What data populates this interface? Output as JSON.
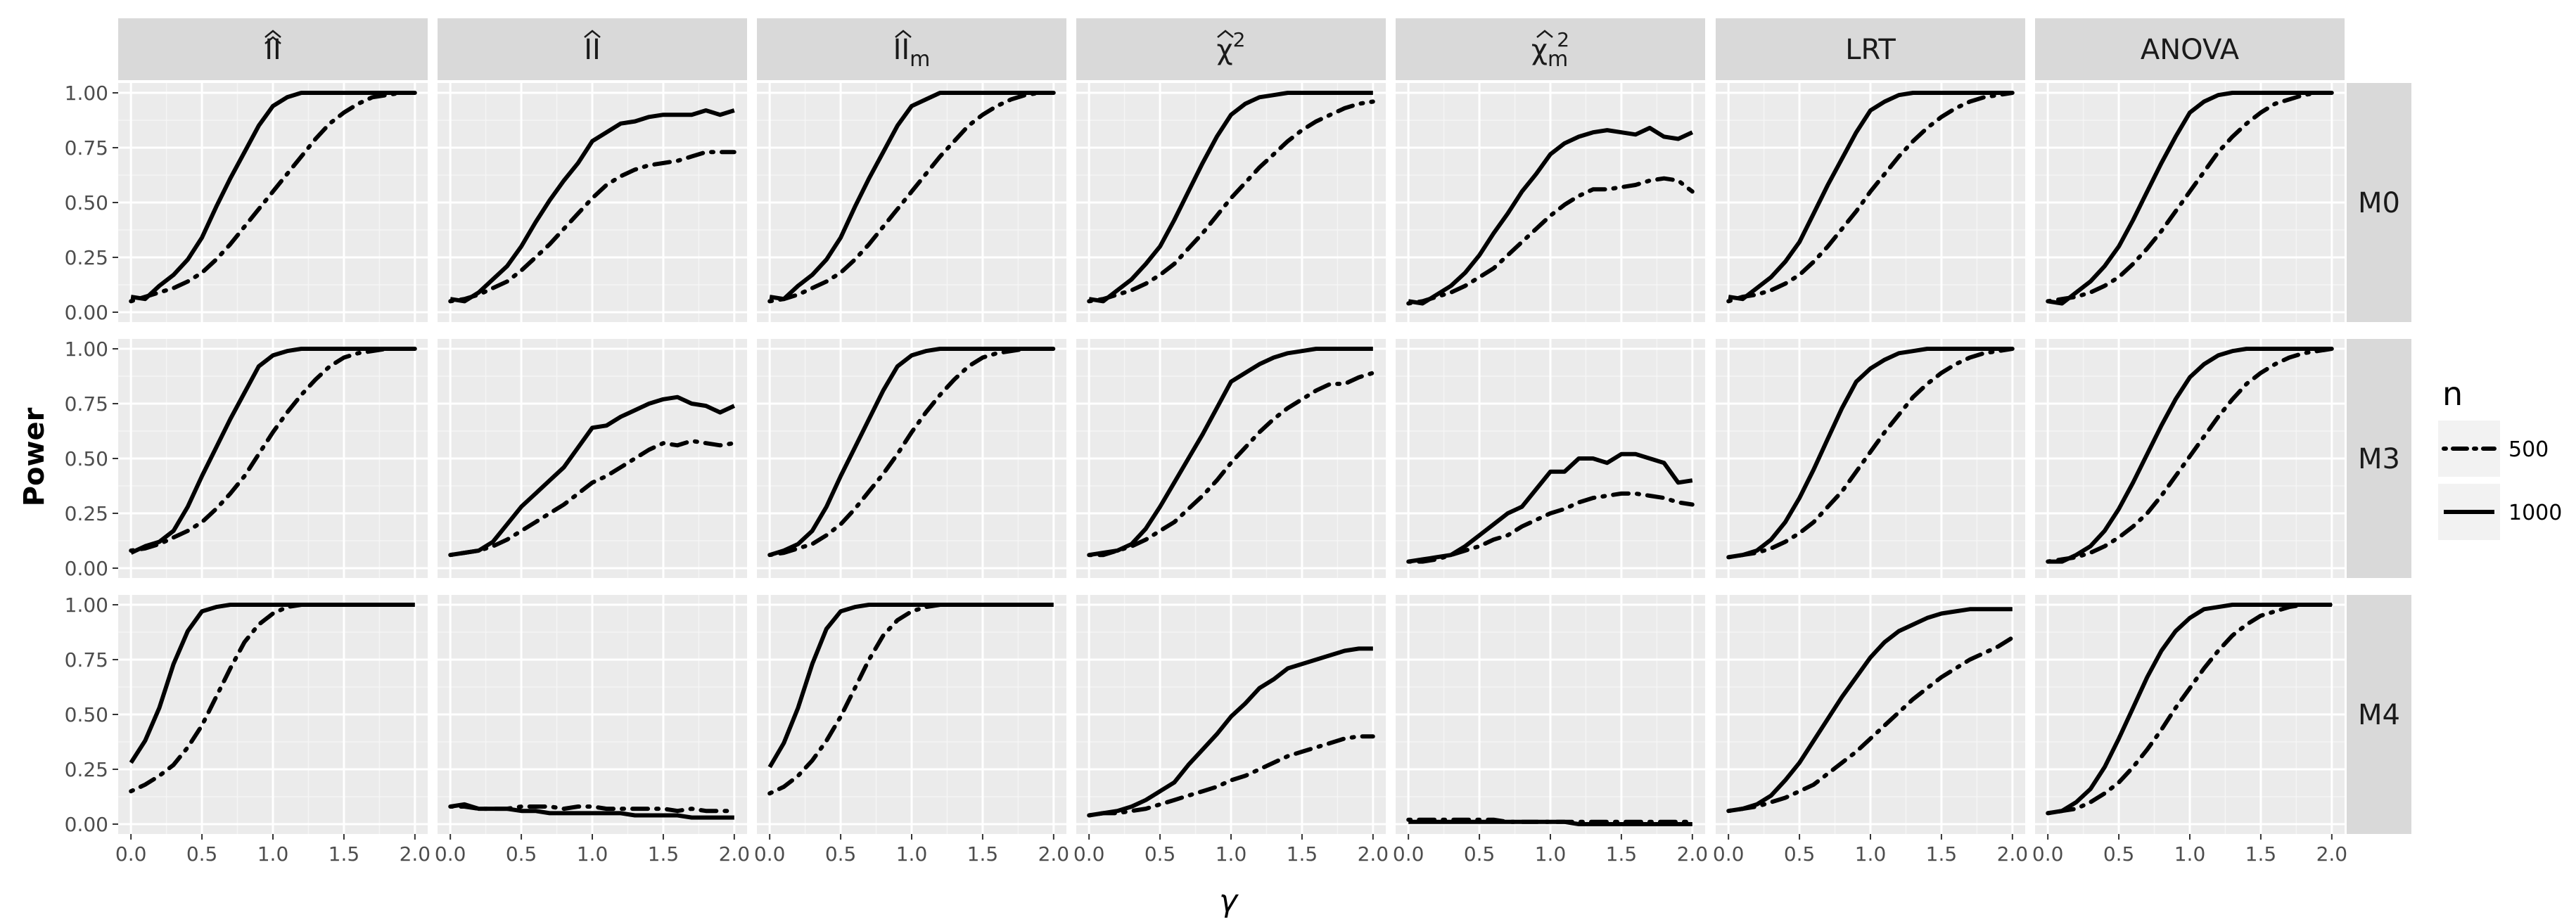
{
  "chart_data": {
    "type": "line",
    "title": "",
    "xlabel": "γ",
    "ylabel": "Power",
    "xlim": [
      0,
      2
    ],
    "ylim": [
      0,
      1
    ],
    "x_ticks": [
      "0.0",
      "0.5",
      "1.0",
      "1.5",
      "2.0"
    ],
    "y_ticks": [
      "0.00",
      "0.25",
      "0.50",
      "0.75",
      "1.00"
    ],
    "grid": true,
    "legend": {
      "title": "n",
      "position": "right",
      "entries": [
        {
          "label": "500",
          "style": "dotdash"
        },
        {
          "label": "1000",
          "style": "solid"
        }
      ]
    },
    "columns": [
      "II-hat-hat",
      "II-hat",
      "II-hat-m",
      "chi2-hat",
      "chi2-hat-m",
      "LRT",
      "ANOVA"
    ],
    "column_labels": [
      {
        "base": "II",
        "sub": ""
      },
      {
        "base": "II",
        "sub": ""
      },
      {
        "base": "II",
        "sub": "m"
      },
      {
        "base": "χ",
        "sub": "",
        "sup": "2"
      },
      {
        "base": "χ",
        "sub": "m",
        "sup": "2"
      },
      {
        "base": "LRT",
        "sub": ""
      },
      {
        "base": "ANOVA",
        "sub": ""
      }
    ],
    "rows": [
      "M0",
      "M3",
      "M4"
    ],
    "x": [
      0.0,
      0.1,
      0.2,
      0.3,
      0.4,
      0.5,
      0.6,
      0.7,
      0.8,
      0.9,
      1.0,
      1.1,
      1.2,
      1.3,
      1.4,
      1.5,
      1.6,
      1.7,
      1.8,
      1.9,
      2.0
    ],
    "panels": [
      [
        {
          "n500": [
            0.05,
            0.07,
            0.09,
            0.11,
            0.14,
            0.18,
            0.24,
            0.31,
            0.39,
            0.47,
            0.55,
            0.63,
            0.71,
            0.79,
            0.86,
            0.91,
            0.95,
            0.98,
            0.99,
            1.0,
            1.0
          ],
          "n1000": [
            0.07,
            0.06,
            0.12,
            0.17,
            0.24,
            0.34,
            0.48,
            0.61,
            0.73,
            0.85,
            0.94,
            0.98,
            1.0,
            1.0,
            1.0,
            1.0,
            1.0,
            1.0,
            1.0,
            1.0,
            1.0
          ]
        },
        {
          "n500": [
            0.05,
            0.06,
            0.08,
            0.11,
            0.14,
            0.19,
            0.25,
            0.31,
            0.38,
            0.45,
            0.52,
            0.58,
            0.62,
            0.65,
            0.67,
            0.68,
            0.69,
            0.71,
            0.73,
            0.73,
            0.73
          ],
          "n1000": [
            0.06,
            0.05,
            0.09,
            0.15,
            0.21,
            0.3,
            0.41,
            0.51,
            0.6,
            0.68,
            0.78,
            0.82,
            0.86,
            0.87,
            0.89,
            0.9,
            0.9,
            0.9,
            0.92,
            0.9,
            0.92
          ]
        },
        {
          "n500": [
            0.05,
            0.06,
            0.08,
            0.11,
            0.14,
            0.18,
            0.24,
            0.31,
            0.39,
            0.47,
            0.55,
            0.63,
            0.71,
            0.78,
            0.85,
            0.9,
            0.94,
            0.97,
            0.99,
            1.0,
            1.0
          ],
          "n1000": [
            0.07,
            0.06,
            0.12,
            0.17,
            0.24,
            0.34,
            0.48,
            0.61,
            0.73,
            0.85,
            0.94,
            0.97,
            1.0,
            1.0,
            1.0,
            1.0,
            1.0,
            1.0,
            1.0,
            1.0,
            1.0
          ]
        },
        {
          "n500": [
            0.05,
            0.06,
            0.08,
            0.1,
            0.13,
            0.17,
            0.22,
            0.29,
            0.36,
            0.44,
            0.52,
            0.59,
            0.66,
            0.72,
            0.78,
            0.83,
            0.87,
            0.9,
            0.93,
            0.95,
            0.96
          ],
          "n1000": [
            0.06,
            0.05,
            0.1,
            0.15,
            0.22,
            0.3,
            0.42,
            0.55,
            0.68,
            0.8,
            0.9,
            0.95,
            0.98,
            0.99,
            1.0,
            1.0,
            1.0,
            1.0,
            1.0,
            1.0,
            1.0
          ]
        },
        {
          "n500": [
            0.04,
            0.05,
            0.07,
            0.09,
            0.12,
            0.16,
            0.2,
            0.26,
            0.32,
            0.38,
            0.44,
            0.49,
            0.53,
            0.56,
            0.56,
            0.57,
            0.58,
            0.6,
            0.61,
            0.6,
            0.55
          ],
          "n1000": [
            0.05,
            0.04,
            0.08,
            0.12,
            0.18,
            0.26,
            0.36,
            0.45,
            0.55,
            0.63,
            0.72,
            0.77,
            0.8,
            0.82,
            0.83,
            0.82,
            0.81,
            0.84,
            0.8,
            0.79,
            0.82
          ]
        },
        {
          "n500": [
            0.05,
            0.07,
            0.08,
            0.1,
            0.13,
            0.17,
            0.23,
            0.3,
            0.38,
            0.46,
            0.55,
            0.63,
            0.71,
            0.78,
            0.84,
            0.89,
            0.93,
            0.96,
            0.98,
            0.99,
            1.0
          ],
          "n1000": [
            0.07,
            0.06,
            0.11,
            0.16,
            0.23,
            0.32,
            0.45,
            0.58,
            0.7,
            0.82,
            0.92,
            0.96,
            0.99,
            1.0,
            1.0,
            1.0,
            1.0,
            1.0,
            1.0,
            1.0,
            1.0
          ]
        },
        {
          "n500": [
            0.05,
            0.06,
            0.07,
            0.09,
            0.12,
            0.16,
            0.22,
            0.29,
            0.37,
            0.46,
            0.55,
            0.64,
            0.73,
            0.8,
            0.86,
            0.91,
            0.95,
            0.97,
            0.99,
            1.0,
            1.0
          ],
          "n1000": [
            0.05,
            0.04,
            0.09,
            0.14,
            0.21,
            0.3,
            0.42,
            0.55,
            0.68,
            0.8,
            0.91,
            0.96,
            0.99,
            1.0,
            1.0,
            1.0,
            1.0,
            1.0,
            1.0,
            1.0,
            1.0
          ]
        }
      ],
      [
        {
          "n500": [
            0.08,
            0.09,
            0.11,
            0.14,
            0.17,
            0.21,
            0.27,
            0.34,
            0.42,
            0.52,
            0.62,
            0.71,
            0.79,
            0.86,
            0.92,
            0.96,
            0.98,
            0.99,
            1.0,
            1.0,
            1.0
          ],
          "n1000": [
            0.07,
            0.1,
            0.12,
            0.17,
            0.28,
            0.42,
            0.55,
            0.68,
            0.8,
            0.92,
            0.97,
            0.99,
            1.0,
            1.0,
            1.0,
            1.0,
            1.0,
            1.0,
            1.0,
            1.0,
            1.0
          ]
        },
        {
          "n500": [
            0.06,
            0.07,
            0.08,
            0.1,
            0.13,
            0.17,
            0.21,
            0.25,
            0.29,
            0.34,
            0.39,
            0.42,
            0.46,
            0.5,
            0.54,
            0.57,
            0.56,
            0.58,
            0.57,
            0.56,
            0.57
          ],
          "n1000": [
            0.06,
            0.07,
            0.08,
            0.12,
            0.2,
            0.28,
            0.34,
            0.4,
            0.46,
            0.55,
            0.64,
            0.65,
            0.69,
            0.72,
            0.75,
            0.77,
            0.78,
            0.75,
            0.74,
            0.71,
            0.74
          ]
        },
        {
          "n500": [
            0.06,
            0.07,
            0.09,
            0.11,
            0.15,
            0.2,
            0.27,
            0.35,
            0.43,
            0.52,
            0.62,
            0.71,
            0.79,
            0.86,
            0.92,
            0.96,
            0.98,
            0.99,
            1.0,
            1.0,
            1.0
          ],
          "n1000": [
            0.06,
            0.08,
            0.11,
            0.17,
            0.28,
            0.42,
            0.55,
            0.68,
            0.81,
            0.92,
            0.97,
            0.99,
            1.0,
            1.0,
            1.0,
            1.0,
            1.0,
            1.0,
            1.0,
            1.0,
            1.0
          ]
        },
        {
          "n500": [
            0.06,
            0.06,
            0.08,
            0.1,
            0.13,
            0.17,
            0.21,
            0.27,
            0.33,
            0.4,
            0.48,
            0.55,
            0.62,
            0.68,
            0.73,
            0.77,
            0.81,
            0.84,
            0.84,
            0.87,
            0.89
          ],
          "n1000": [
            0.06,
            0.07,
            0.08,
            0.11,
            0.18,
            0.28,
            0.39,
            0.5,
            0.61,
            0.73,
            0.85,
            0.89,
            0.93,
            0.96,
            0.98,
            0.99,
            1.0,
            1.0,
            1.0,
            1.0,
            1.0
          ]
        },
        {
          "n500": [
            0.03,
            0.03,
            0.04,
            0.06,
            0.08,
            0.1,
            0.13,
            0.15,
            0.19,
            0.22,
            0.25,
            0.27,
            0.3,
            0.32,
            0.33,
            0.34,
            0.34,
            0.33,
            0.32,
            0.3,
            0.29
          ],
          "n1000": [
            0.03,
            0.04,
            0.05,
            0.06,
            0.1,
            0.15,
            0.2,
            0.25,
            0.28,
            0.36,
            0.44,
            0.44,
            0.5,
            0.5,
            0.48,
            0.52,
            0.52,
            0.5,
            0.48,
            0.39,
            0.4
          ]
        },
        {
          "n500": [
            0.05,
            0.06,
            0.07,
            0.09,
            0.12,
            0.16,
            0.21,
            0.28,
            0.35,
            0.44,
            0.53,
            0.62,
            0.7,
            0.78,
            0.84,
            0.89,
            0.93,
            0.96,
            0.98,
            0.99,
            1.0
          ],
          "n1000": [
            0.05,
            0.06,
            0.08,
            0.13,
            0.21,
            0.32,
            0.45,
            0.59,
            0.73,
            0.85,
            0.91,
            0.95,
            0.98,
            0.99,
            1.0,
            1.0,
            1.0,
            1.0,
            1.0,
            1.0,
            1.0
          ]
        },
        {
          "n500": [
            0.03,
            0.04,
            0.05,
            0.07,
            0.1,
            0.14,
            0.19,
            0.25,
            0.33,
            0.42,
            0.51,
            0.6,
            0.69,
            0.77,
            0.84,
            0.89,
            0.93,
            0.96,
            0.98,
            0.99,
            1.0
          ],
          "n1000": [
            0.03,
            0.03,
            0.06,
            0.1,
            0.17,
            0.27,
            0.39,
            0.52,
            0.65,
            0.77,
            0.87,
            0.93,
            0.97,
            0.99,
            1.0,
            1.0,
            1.0,
            1.0,
            1.0,
            1.0,
            1.0
          ]
        }
      ],
      [
        {
          "n500": [
            0.15,
            0.18,
            0.22,
            0.27,
            0.35,
            0.45,
            0.58,
            0.71,
            0.83,
            0.91,
            0.96,
            0.99,
            1.0,
            1.0,
            1.0,
            1.0,
            1.0,
            1.0,
            1.0,
            1.0,
            1.0
          ],
          "n1000": [
            0.28,
            0.38,
            0.53,
            0.73,
            0.88,
            0.97,
            0.99,
            1.0,
            1.0,
            1.0,
            1.0,
            1.0,
            1.0,
            1.0,
            1.0,
            1.0,
            1.0,
            1.0,
            1.0,
            1.0,
            1.0
          ]
        },
        {
          "n500": [
            0.08,
            0.08,
            0.07,
            0.07,
            0.07,
            0.08,
            0.08,
            0.08,
            0.07,
            0.08,
            0.08,
            0.07,
            0.07,
            0.07,
            0.07,
            0.07,
            0.06,
            0.07,
            0.06,
            0.06,
            0.06
          ],
          "n1000": [
            0.08,
            0.09,
            0.07,
            0.07,
            0.07,
            0.06,
            0.06,
            0.05,
            0.05,
            0.05,
            0.05,
            0.05,
            0.05,
            0.04,
            0.04,
            0.04,
            0.04,
            0.03,
            0.03,
            0.03,
            0.03
          ]
        },
        {
          "n500": [
            0.14,
            0.17,
            0.22,
            0.29,
            0.38,
            0.49,
            0.62,
            0.75,
            0.86,
            0.93,
            0.97,
            0.99,
            1.0,
            1.0,
            1.0,
            1.0,
            1.0,
            1.0,
            1.0,
            1.0,
            1.0
          ],
          "n1000": [
            0.26,
            0.37,
            0.53,
            0.73,
            0.89,
            0.97,
            0.99,
            1.0,
            1.0,
            1.0,
            1.0,
            1.0,
            1.0,
            1.0,
            1.0,
            1.0,
            1.0,
            1.0,
            1.0,
            1.0,
            1.0
          ]
        },
        {
          "n500": [
            0.04,
            0.05,
            0.05,
            0.06,
            0.07,
            0.09,
            0.11,
            0.13,
            0.15,
            0.17,
            0.2,
            0.22,
            0.25,
            0.28,
            0.31,
            0.33,
            0.35,
            0.37,
            0.39,
            0.4,
            0.4
          ],
          "n1000": [
            0.04,
            0.05,
            0.06,
            0.08,
            0.11,
            0.15,
            0.19,
            0.27,
            0.34,
            0.41,
            0.49,
            0.55,
            0.62,
            0.66,
            0.71,
            0.73,
            0.75,
            0.77,
            0.79,
            0.8,
            0.8
          ]
        },
        {
          "n500": [
            0.02,
            0.02,
            0.02,
            0.02,
            0.02,
            0.02,
            0.02,
            0.01,
            0.01,
            0.01,
            0.01,
            0.01,
            0.01,
            0.01,
            0.01,
            0.01,
            0.01,
            0.01,
            0.01,
            0.01,
            0.01
          ],
          "n1000": [
            0.01,
            0.01,
            0.01,
            0.01,
            0.01,
            0.01,
            0.01,
            0.01,
            0.01,
            0.01,
            0.01,
            0.01,
            0.0,
            0.0,
            0.0,
            0.0,
            0.0,
            0.0,
            0.0,
            0.0,
            0.0
          ]
        },
        {
          "n500": [
            0.06,
            0.07,
            0.08,
            0.1,
            0.12,
            0.15,
            0.18,
            0.23,
            0.28,
            0.33,
            0.39,
            0.45,
            0.51,
            0.57,
            0.62,
            0.67,
            0.71,
            0.75,
            0.78,
            0.81,
            0.85
          ],
          "n1000": [
            0.06,
            0.07,
            0.09,
            0.13,
            0.2,
            0.28,
            0.38,
            0.48,
            0.58,
            0.67,
            0.76,
            0.83,
            0.88,
            0.91,
            0.94,
            0.96,
            0.97,
            0.98,
            0.98,
            0.98,
            0.98
          ]
        },
        {
          "n500": [
            0.05,
            0.06,
            0.07,
            0.1,
            0.14,
            0.19,
            0.26,
            0.34,
            0.43,
            0.53,
            0.62,
            0.71,
            0.79,
            0.86,
            0.91,
            0.95,
            0.97,
            0.99,
            1.0,
            1.0,
            1.0
          ],
          "n1000": [
            0.05,
            0.06,
            0.1,
            0.16,
            0.26,
            0.39,
            0.53,
            0.67,
            0.79,
            0.88,
            0.94,
            0.98,
            0.99,
            1.0,
            1.0,
            1.0,
            1.0,
            1.0,
            1.0,
            1.0,
            1.0
          ]
        }
      ]
    ]
  }
}
